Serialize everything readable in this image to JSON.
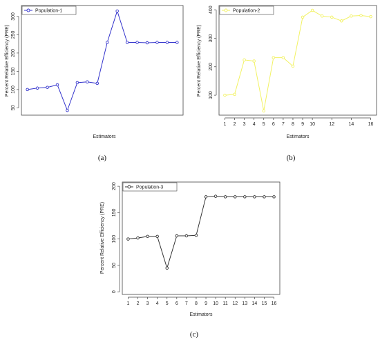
{
  "chart_data": [
    {
      "id": "a",
      "type": "line",
      "caption": "(a)",
      "xlabel": "Estimators",
      "ylabel": "Percent Relative Efficiency (PRE)",
      "legend_position": "top-left",
      "grid": false,
      "x_tick_labels": [],
      "y_ticks": [
        50,
        100,
        150,
        200,
        250,
        300
      ],
      "ylim": [
        30,
        330
      ],
      "xlim": [
        0.4,
        16.6
      ],
      "series": [
        {
          "name": "Population-1",
          "color": "#3333cc",
          "x": [
            1,
            2,
            3,
            4,
            5,
            6,
            7,
            8,
            9,
            10,
            11,
            12,
            13,
            14,
            15,
            16
          ],
          "values": [
            100,
            104,
            106,
            113,
            43,
            119,
            121,
            117,
            229,
            315,
            229,
            229,
            228,
            229,
            229,
            229
          ]
        }
      ]
    },
    {
      "id": "b",
      "type": "line",
      "caption": "(b)",
      "xlabel": "Estimators",
      "ylabel": "Percent Relative Efficiency (PRE)",
      "legend_position": "top-left",
      "grid": false,
      "x_tick_labels": [
        "1",
        "2",
        "3",
        "4",
        "5",
        "6",
        "7",
        "8",
        "9",
        "10",
        "12",
        "14",
        "16"
      ],
      "x_tick_values": [
        1,
        2,
        3,
        4,
        5,
        6,
        7,
        8,
        9,
        10,
        12,
        14,
        16
      ],
      "y_ticks": [
        100,
        200,
        300,
        400
      ],
      "ylim": [
        30,
        415
      ],
      "xlim": [
        0.4,
        16.6
      ],
      "series": [
        {
          "name": "Population-2",
          "color": "#f2f261",
          "x": [
            1,
            2,
            3,
            4,
            5,
            6,
            7,
            8,
            9,
            10,
            11,
            12,
            13,
            14,
            15,
            16
          ],
          "values": [
            100,
            103,
            224,
            220,
            45,
            232,
            232,
            202,
            374,
            398,
            378,
            374,
            361,
            378,
            380,
            376
          ]
        }
      ]
    },
    {
      "id": "c",
      "type": "line",
      "caption": "(c)",
      "xlabel": "Estimators",
      "ylabel": "Percent Relative Efficiency (PRE)",
      "legend_position": "top-left",
      "grid": false,
      "x_tick_labels": [
        "1",
        "2",
        "3",
        "4",
        "5",
        "6",
        "7",
        "8",
        "9",
        "10",
        "11",
        "12",
        "13",
        "14",
        "15",
        "16"
      ],
      "x_tick_values": [
        1,
        2,
        3,
        4,
        5,
        6,
        7,
        8,
        9,
        10,
        11,
        12,
        13,
        14,
        15,
        16
      ],
      "y_ticks": [
        0,
        50,
        100,
        150,
        200
      ],
      "ylim": [
        -5,
        208
      ],
      "xlim": [
        0.4,
        16.6
      ],
      "series": [
        {
          "name": "Population-3",
          "color": "#333333",
          "x": [
            1,
            2,
            3,
            4,
            5,
            6,
            7,
            8,
            9,
            10,
            11,
            12,
            13,
            14,
            15,
            16
          ],
          "values": [
            100,
            102,
            105,
            105,
            45,
            106,
            106,
            107,
            180,
            181,
            180,
            180,
            180,
            180,
            180,
            180
          ]
        }
      ]
    }
  ]
}
